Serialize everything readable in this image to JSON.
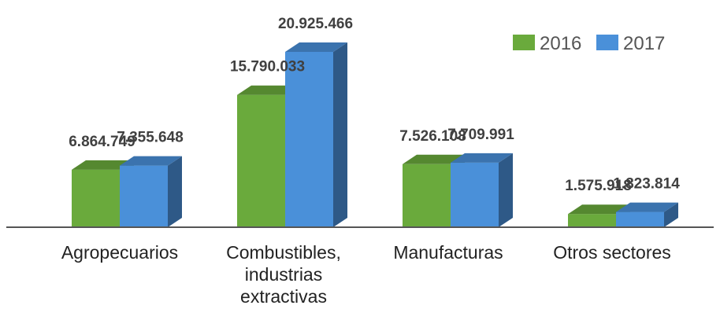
{
  "chart_data": {
    "type": "bar",
    "style": "3d-clustered-column",
    "categories": [
      [
        "Agropecuarios"
      ],
      [
        "Combustibles,",
        "industrias",
        "extractivas"
      ],
      [
        "Manufacturas"
      ],
      [
        "Otros sectores"
      ]
    ],
    "series": [
      {
        "name": "2016",
        "color": "#6aaa3c",
        "values": [
          6864749,
          15790033,
          7526108,
          1575918
        ],
        "labels": [
          "6.864.749",
          "15.790.033",
          "7.526.108",
          "1.575.918"
        ]
      },
      {
        "name": "2017",
        "color": "#4a90d9",
        "values": [
          7355648,
          20925466,
          7709991,
          1823814
        ],
        "labels": [
          "7.355.648",
          "20.925.466",
          "7.709.991",
          "1.823.814"
        ]
      }
    ],
    "title": "",
    "xlabel": "",
    "ylabel": "",
    "ylim": [
      0,
      21500000
    ],
    "grid": false,
    "legend_position": "top-right"
  }
}
